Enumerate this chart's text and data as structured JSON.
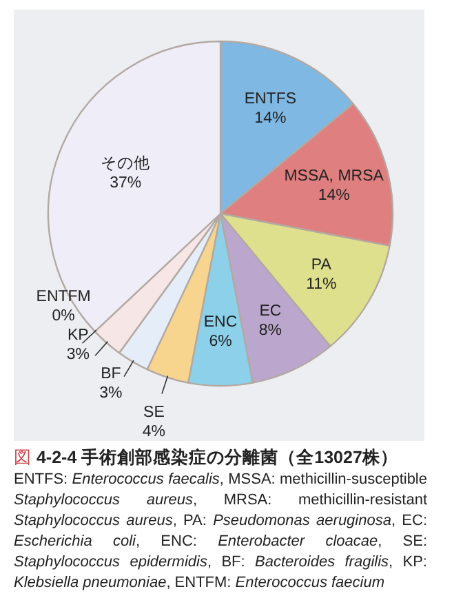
{
  "chart_data": {
    "type": "pie",
    "title": "図 4-2-4 手術創部感染症の分離菌（全13027株）",
    "categories": [
      "ENTFS",
      "MSSA, MRSA",
      "PA",
      "EC",
      "ENC",
      "SE",
      "BF",
      "KP",
      "ENTFM",
      "その他"
    ],
    "values": [
      14,
      14,
      11,
      8,
      6,
      4,
      3,
      3,
      0,
      37
    ],
    "value_labels": [
      "14%",
      "14%",
      "11%",
      "8%",
      "6%",
      "4%",
      "3%",
      "3%",
      "0%",
      "37%"
    ],
    "colors": [
      "#7fb9e3",
      "#e07f7f",
      "#dfe08d",
      "#bba7cd",
      "#8dd0ea",
      "#f8d58e",
      "#e5eef8",
      "#f7e6e6",
      "#f5eeee",
      "#efeef8"
    ],
    "annotations": [
      "ENTFS: *Enterococcus faecalis*, MSSA: methicillin-susceptible *Staphylococcus aureus*, MRSA: methicillin-resistant *Staphylococcus aureus*, PA: *Pseudomonas aeruginosa*, EC: *Escherichia coli*, ENC: *Enterobacter cloacae*, SE: *Staphylococcus epidermidis*, BF: *Bacteroides fragilis*, KP: *Klebsiella pneumoniae*, ENTFM: *Enterococcus faecium*"
    ]
  }
}
